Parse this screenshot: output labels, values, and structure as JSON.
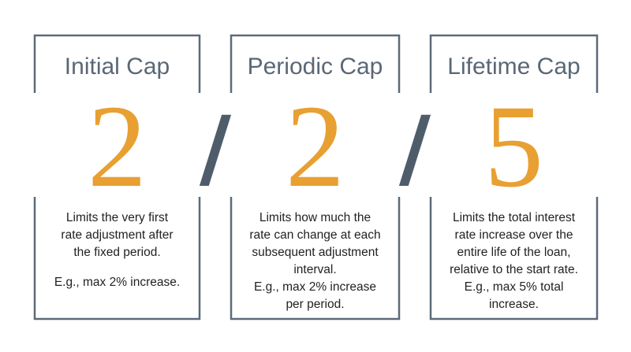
{
  "separator": "/",
  "cards": [
    {
      "title": "Initial Cap",
      "number": "2",
      "description": [
        "Limits the very first",
        "rate adjustment after",
        "the fixed period."
      ],
      "example": [
        "E.g., max 2% increase."
      ]
    },
    {
      "title": "Periodic Cap",
      "number": "2",
      "description": [
        "Limits how much the",
        "rate can change at each",
        "subsequent adjustment",
        "interval."
      ],
      "example": [
        "E.g., max 2% increase",
        "per period."
      ]
    },
    {
      "title": "Lifetime Cap",
      "number": "5",
      "description": [
        "Limits the total interest",
        "rate increase over the",
        "entire life of the loan,",
        "relative to the start rate."
      ],
      "example": [
        "E.g., max 5% total",
        "increase."
      ]
    }
  ]
}
